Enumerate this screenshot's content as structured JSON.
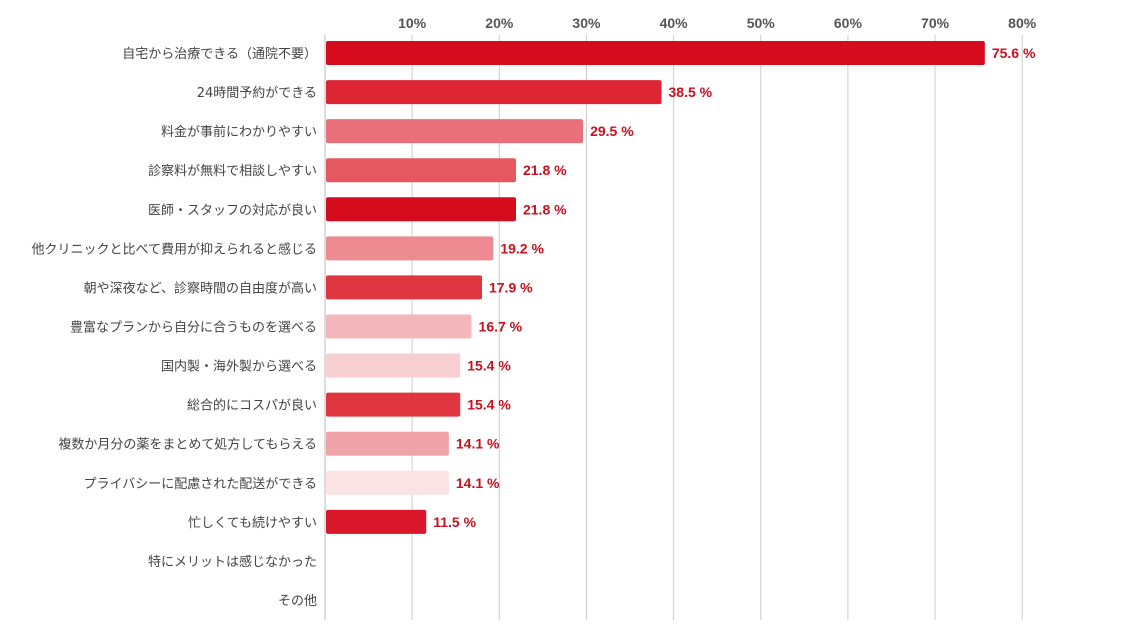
{
  "chart_data": {
    "type": "bar",
    "orientation": "horizontal",
    "title": "",
    "xlabel": "",
    "ylabel": "",
    "xlim": [
      0,
      80
    ],
    "grid": true,
    "legend": "none",
    "x_ticks": [
      "10%",
      "20%",
      "30%",
      "40%",
      "50%",
      "60%",
      "70%",
      "80%"
    ],
    "x_tick_values": [
      10,
      20,
      30,
      40,
      50,
      60,
      70,
      80
    ],
    "categories": [
      "自宅から治療できる（通院不要）",
      "24時間予約ができる",
      "料金が事前にわかりやすい",
      "診察料が無料で相談しやすい",
      "医師・スタッフの対応が良い",
      "他クリニックと比べて費用が抑えられると感じる",
      "朝や深夜など、診察時間の自由度が高い",
      "豊富なプランから自分に合うものを選べる",
      "国内製・海外製から選べる",
      "総合的にコスパが良い",
      "複数か月分の薬をまとめて処方してもらえる",
      "プライバシーに配慮された配送ができる",
      "忙しくても続けやすい",
      "特にメリットは感じなかった",
      "その他"
    ],
    "values": [
      75.6,
      38.5,
      29.5,
      21.8,
      21.8,
      19.2,
      17.9,
      16.7,
      15.4,
      15.4,
      14.1,
      14.1,
      11.5,
      0,
      0
    ],
    "value_labels": [
      "75.6 %",
      "38.5 %",
      "29.5 %",
      "21.8 %",
      "21.8 %",
      "19.2 %",
      "17.9 %",
      "16.7 %",
      "15.4 %",
      "15.4 %",
      "14.1 %",
      "14.1 %",
      "11.5 %",
      "",
      ""
    ],
    "bar_colors": [
      "#d50c1e",
      "#de2534",
      "#e9707a",
      "#e55860",
      "#d50c1e",
      "#ee8a92",
      "#e0363f",
      "#f3b6ba",
      "#f7cfd2",
      "#e0363f",
      "#f0a3a8",
      "#fbe3e5",
      "#d8182a",
      "#d8182a",
      "#d8182a"
    ],
    "value_label_color": "#c8101e",
    "grid_color": "#cccccc"
  }
}
